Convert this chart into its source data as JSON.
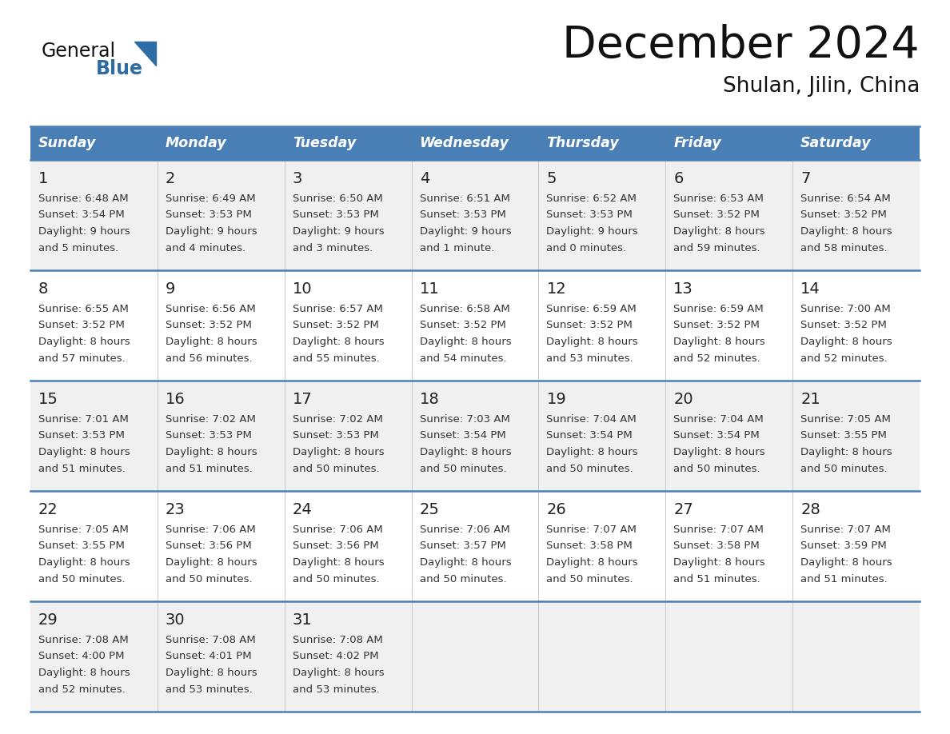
{
  "title": "December 2024",
  "subtitle": "Shulan, Jilin, China",
  "days_of_week": [
    "Sunday",
    "Monday",
    "Tuesday",
    "Wednesday",
    "Thursday",
    "Friday",
    "Saturday"
  ],
  "header_bg": "#4a7fb5",
  "header_text": "#ffffff",
  "row_bg_odd": "#f0f0f0",
  "row_bg_even": "#ffffff",
  "day_num_color": "#222222",
  "cell_text_color": "#333333",
  "divider_color": "#4a7fb5",
  "title_color": "#111111",
  "subtitle_color": "#111111",
  "logo_general_color": "#111111",
  "logo_blue_color": "#2e6da4",
  "weeks": [
    [
      {
        "day": "1",
        "sunrise": "6:48 AM",
        "sunset": "3:54 PM",
        "daylight": "9 hours",
        "daylight2": "and 5 minutes."
      },
      {
        "day": "2",
        "sunrise": "6:49 AM",
        "sunset": "3:53 PM",
        "daylight": "9 hours",
        "daylight2": "and 4 minutes."
      },
      {
        "day": "3",
        "sunrise": "6:50 AM",
        "sunset": "3:53 PM",
        "daylight": "9 hours",
        "daylight2": "and 3 minutes."
      },
      {
        "day": "4",
        "sunrise": "6:51 AM",
        "sunset": "3:53 PM",
        "daylight": "9 hours",
        "daylight2": "and 1 minute."
      },
      {
        "day": "5",
        "sunrise": "6:52 AM",
        "sunset": "3:53 PM",
        "daylight": "9 hours",
        "daylight2": "and 0 minutes."
      },
      {
        "day": "6",
        "sunrise": "6:53 AM",
        "sunset": "3:52 PM",
        "daylight": "8 hours",
        "daylight2": "and 59 minutes."
      },
      {
        "day": "7",
        "sunrise": "6:54 AM",
        "sunset": "3:52 PM",
        "daylight": "8 hours",
        "daylight2": "and 58 minutes."
      }
    ],
    [
      {
        "day": "8",
        "sunrise": "6:55 AM",
        "sunset": "3:52 PM",
        "daylight": "8 hours",
        "daylight2": "and 57 minutes."
      },
      {
        "day": "9",
        "sunrise": "6:56 AM",
        "sunset": "3:52 PM",
        "daylight": "8 hours",
        "daylight2": "and 56 minutes."
      },
      {
        "day": "10",
        "sunrise": "6:57 AM",
        "sunset": "3:52 PM",
        "daylight": "8 hours",
        "daylight2": "and 55 minutes."
      },
      {
        "day": "11",
        "sunrise": "6:58 AM",
        "sunset": "3:52 PM",
        "daylight": "8 hours",
        "daylight2": "and 54 minutes."
      },
      {
        "day": "12",
        "sunrise": "6:59 AM",
        "sunset": "3:52 PM",
        "daylight": "8 hours",
        "daylight2": "and 53 minutes."
      },
      {
        "day": "13",
        "sunrise": "6:59 AM",
        "sunset": "3:52 PM",
        "daylight": "8 hours",
        "daylight2": "and 52 minutes."
      },
      {
        "day": "14",
        "sunrise": "7:00 AM",
        "sunset": "3:52 PM",
        "daylight": "8 hours",
        "daylight2": "and 52 minutes."
      }
    ],
    [
      {
        "day": "15",
        "sunrise": "7:01 AM",
        "sunset": "3:53 PM",
        "daylight": "8 hours",
        "daylight2": "and 51 minutes."
      },
      {
        "day": "16",
        "sunrise": "7:02 AM",
        "sunset": "3:53 PM",
        "daylight": "8 hours",
        "daylight2": "and 51 minutes."
      },
      {
        "day": "17",
        "sunrise": "7:02 AM",
        "sunset": "3:53 PM",
        "daylight": "8 hours",
        "daylight2": "and 50 minutes."
      },
      {
        "day": "18",
        "sunrise": "7:03 AM",
        "sunset": "3:54 PM",
        "daylight": "8 hours",
        "daylight2": "and 50 minutes."
      },
      {
        "day": "19",
        "sunrise": "7:04 AM",
        "sunset": "3:54 PM",
        "daylight": "8 hours",
        "daylight2": "and 50 minutes."
      },
      {
        "day": "20",
        "sunrise": "7:04 AM",
        "sunset": "3:54 PM",
        "daylight": "8 hours",
        "daylight2": "and 50 minutes."
      },
      {
        "day": "21",
        "sunrise": "7:05 AM",
        "sunset": "3:55 PM",
        "daylight": "8 hours",
        "daylight2": "and 50 minutes."
      }
    ],
    [
      {
        "day": "22",
        "sunrise": "7:05 AM",
        "sunset": "3:55 PM",
        "daylight": "8 hours",
        "daylight2": "and 50 minutes."
      },
      {
        "day": "23",
        "sunrise": "7:06 AM",
        "sunset": "3:56 PM",
        "daylight": "8 hours",
        "daylight2": "and 50 minutes."
      },
      {
        "day": "24",
        "sunrise": "7:06 AM",
        "sunset": "3:56 PM",
        "daylight": "8 hours",
        "daylight2": "and 50 minutes."
      },
      {
        "day": "25",
        "sunrise": "7:06 AM",
        "sunset": "3:57 PM",
        "daylight": "8 hours",
        "daylight2": "and 50 minutes."
      },
      {
        "day": "26",
        "sunrise": "7:07 AM",
        "sunset": "3:58 PM",
        "daylight": "8 hours",
        "daylight2": "and 50 minutes."
      },
      {
        "day": "27",
        "sunrise": "7:07 AM",
        "sunset": "3:58 PM",
        "daylight": "8 hours",
        "daylight2": "and 51 minutes."
      },
      {
        "day": "28",
        "sunrise": "7:07 AM",
        "sunset": "3:59 PM",
        "daylight": "8 hours",
        "daylight2": "and 51 minutes."
      }
    ],
    [
      {
        "day": "29",
        "sunrise": "7:08 AM",
        "sunset": "4:00 PM",
        "daylight": "8 hours",
        "daylight2": "and 52 minutes."
      },
      {
        "day": "30",
        "sunrise": "7:08 AM",
        "sunset": "4:01 PM",
        "daylight": "8 hours",
        "daylight2": "and 53 minutes."
      },
      {
        "day": "31",
        "sunrise": "7:08 AM",
        "sunset": "4:02 PM",
        "daylight": "8 hours",
        "daylight2": "and 53 minutes."
      },
      null,
      null,
      null,
      null
    ]
  ]
}
